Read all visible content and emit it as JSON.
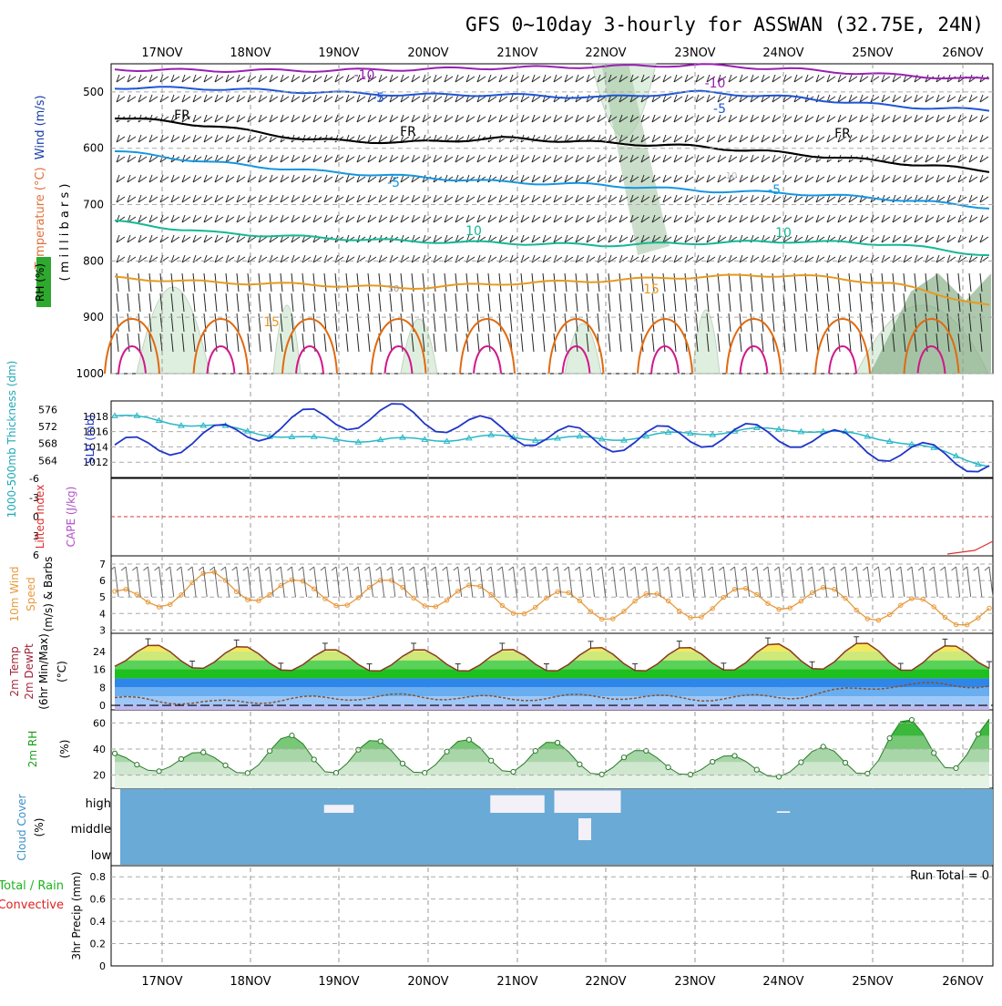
{
  "title": "GFS 0~10day 3-hourly for ASSWAN (32.75E, 24N)",
  "colors": {
    "purple": "#9a1fb4",
    "blue": "#1f55d6",
    "lightblue": "#1596e0",
    "teal": "#14b894",
    "orange": "#e79a20",
    "darkorange": "#e06a10",
    "magenta": "#d0188a",
    "slp": "#2035c8",
    "thick": "#28b8c8",
    "wind": "#e89a3c",
    "rh": "#1a9e1a",
    "cloud_bg": "#6aaad6",
    "precip_total": "#1cb41c",
    "precip_conv": "#e02020"
  },
  "dates": [
    "17NOV",
    "18NOV",
    "19NOV",
    "20NOV",
    "21NOV",
    "22NOV",
    "23NOV",
    "24NOV",
    "25NOV",
    "26NOV"
  ],
  "panels": {
    "upper": {
      "ylabel_wind": "Wind (m/s)",
      "ylabel_temp": "Temperature (°C)",
      "ylabel_mb": "( m i l l i b a r s )",
      "rh_label": "RH (%)",
      "yticks": [
        "500",
        "600",
        "700",
        "800",
        "900",
        "1000"
      ],
      "contour_labels": [
        "-10",
        "-10",
        "-5",
        "-5",
        "FR",
        "FR",
        "FR",
        "-5",
        "-5",
        "10",
        "10",
        "15",
        "15",
        "30",
        "10"
      ]
    },
    "slp": {
      "ylabel_thick": "1000-500mb Thickness (dm)",
      "ylabel_slp": "SLP (mb)",
      "thick_ticks": [
        "576",
        "572",
        "568",
        "564"
      ],
      "slp_ticks": [
        "1018",
        "1016",
        "1014",
        "1012"
      ]
    },
    "cape": {
      "ylabel_li": "Lifted Index",
      "ylabel_cape": "CAPE (J/kg)",
      "ticks": [
        "-6",
        "-3",
        "0",
        "3",
        "6"
      ]
    },
    "wind10": {
      "ylabel1": "10m Wind",
      "ylabel2": "Speed",
      "ylabel3": "(m/s) & Barbs",
      "ticks": [
        "7",
        "6",
        "5",
        "4",
        "3"
      ]
    },
    "temp": {
      "ylabel1": "2m Temp",
      "ylabel2": "2m DewPt",
      "ylabel3": "(6hr Min/Max)",
      "ylabel4": "(°C)",
      "ticks": [
        "24",
        "16",
        "8",
        "0"
      ]
    },
    "rh2m": {
      "ylabel1": "2m RH",
      "ylabel2": "(%)",
      "ticks": [
        "60",
        "40",
        "20"
      ]
    },
    "cloud": {
      "ylabel1": "Cloud Cover",
      "ylabel2": "(%)",
      "levels": [
        "high",
        "middle",
        "low"
      ]
    },
    "precip": {
      "ylabel_total": "Total / Rain",
      "ylabel_conv": "Convective",
      "ylabel_axis": "3hr Precip (mm)",
      "ticks": [
        "0.8",
        "0.6",
        "0.4",
        "0.2",
        "0"
      ],
      "run_total": "Run Total = 0"
    }
  },
  "chart_data": [
    {
      "type": "line",
      "name": "upper-air cross-section",
      "x": [
        "17NOV",
        "18NOV",
        "19NOV",
        "20NOV",
        "21NOV",
        "22NOV",
        "23NOV",
        "24NOV",
        "25NOV",
        "26NOV"
      ],
      "ylim_mb": [
        1000,
        450
      ],
      "isotherms": [
        {
          "label": "-10",
          "mb": [
            460,
            462,
            462,
            460,
            457,
            455,
            452,
            460,
            470,
            478
          ]
        },
        {
          "label": "-5",
          "mb": [
            492,
            494,
            500,
            505,
            505,
            510,
            500,
            510,
            525,
            533
          ]
        },
        {
          "label": "FR",
          "mb": [
            545,
            560,
            585,
            590,
            582,
            590,
            597,
            610,
            625,
            640
          ]
        },
        {
          "label": "5",
          "mb": [
            605,
            625,
            640,
            650,
            660,
            665,
            675,
            680,
            690,
            705
          ]
        },
        {
          "label": "10",
          "mb": [
            730,
            750,
            758,
            765,
            768,
            772,
            768,
            765,
            770,
            790
          ]
        },
        {
          "label": "15",
          "mb": [
            830,
            838,
            842,
            848,
            840,
            835,
            828,
            825,
            840,
            880
          ]
        }
      ]
    },
    {
      "type": "line",
      "name": "SLP & thickness",
      "x": [
        "17NOV",
        "18NOV",
        "19NOV",
        "20NOV",
        "21NOV",
        "22NOV",
        "23NOV",
        "24NOV",
        "25NOV",
        "26NOV"
      ],
      "series": [
        {
          "name": "SLP (mb)",
          "values": [
            1013.5,
            1015.2,
            1017.5,
            1018.2,
            1016.0,
            1014.8,
            1015.5,
            1015.5,
            1013.5,
            1012.0
          ]
        },
        {
          "name": "1000-500mb Thickness (dm)",
          "values": [
            574.5,
            572.0,
            569.0,
            568.8,
            569.5,
            569.0,
            570.5,
            571.5,
            569.0,
            563.0
          ]
        }
      ],
      "ylim_slp": [
        1010,
        1020
      ],
      "ylim_thick": [
        560,
        578
      ]
    },
    {
      "type": "line",
      "name": "Lifted Index / CAPE",
      "x": [
        "17NOV",
        "18NOV",
        "19NOV",
        "20NOV",
        "21NOV",
        "22NOV",
        "23NOV",
        "24NOV",
        "25NOV",
        "26NOV"
      ],
      "ylim": [
        -6,
        6
      ],
      "values": [
        0,
        0,
        0,
        0,
        0,
        0,
        0,
        0,
        0,
        0
      ]
    },
    {
      "type": "line",
      "name": "10m wind speed",
      "x": [
        "17NOV",
        "18NOV",
        "19NOV",
        "20NOV",
        "21NOV",
        "22NOV",
        "23NOV",
        "24NOV",
        "25NOV",
        "26NOV"
      ],
      "ylim": [
        3,
        7.5
      ],
      "values": [
        4.6,
        5.8,
        5.2,
        5.3,
        4.8,
        4.4,
        4.5,
        5.1,
        4.2,
        4.0
      ]
    },
    {
      "type": "area",
      "name": "2m temperature",
      "x": [
        "17NOV",
        "18NOV",
        "19NOV",
        "20NOV",
        "21NOV",
        "22NOV",
        "23NOV",
        "24NOV",
        "25NOV",
        "26NOV"
      ],
      "ylim": [
        -2,
        32
      ],
      "series": [
        {
          "name": "2m Temp",
          "min": [
            17,
            16,
            15,
            15,
            15,
            15,
            15,
            16,
            15,
            16
          ],
          "max": [
            27,
            27,
            25,
            25,
            25,
            26,
            26,
            28,
            28,
            26
          ]
        },
        {
          "name": "2m DewPt",
          "values": [
            3,
            1,
            3,
            4,
            3,
            4,
            3,
            4,
            9,
            9
          ]
        }
      ]
    },
    {
      "type": "area",
      "name": "2m RH",
      "x": [
        "17NOV",
        "18NOV",
        "19NOV",
        "20NOV",
        "21NOV",
        "22NOV",
        "23NOV",
        "24NOV",
        "25NOV",
        "26NOV"
      ],
      "ylim": [
        10,
        70
      ],
      "min": [
        24,
        21,
        21,
        21,
        22,
        20,
        20,
        18,
        21,
        26
      ],
      "max": [
        37,
        38,
        54,
        44,
        50,
        42,
        36,
        34,
        63,
        65
      ]
    },
    {
      "type": "bar",
      "name": "cloud cover",
      "x": [
        "17NOV",
        "18NOV",
        "19NOV",
        "20NOV",
        "21NOV",
        "22NOV",
        "23NOV",
        "24NOV",
        "25NOV",
        "26NOV"
      ],
      "high": [
        0,
        0,
        25,
        0,
        55,
        70,
        0,
        5,
        0,
        0
      ],
      "middle": [
        0,
        0,
        0,
        0,
        0,
        60,
        0,
        0,
        0,
        0
      ],
      "low": [
        0,
        0,
        0,
        0,
        0,
        0,
        0,
        0,
        0,
        0
      ]
    },
    {
      "type": "bar",
      "name": "3hr precip",
      "x": [
        "17NOV",
        "18NOV",
        "19NOV",
        "20NOV",
        "21NOV",
        "22NOV",
        "23NOV",
        "24NOV",
        "25NOV",
        "26NOV"
      ],
      "ylim": [
        0,
        0.9
      ],
      "values": [
        0,
        0,
        0,
        0,
        0,
        0,
        0,
        0,
        0,
        0
      ]
    }
  ]
}
